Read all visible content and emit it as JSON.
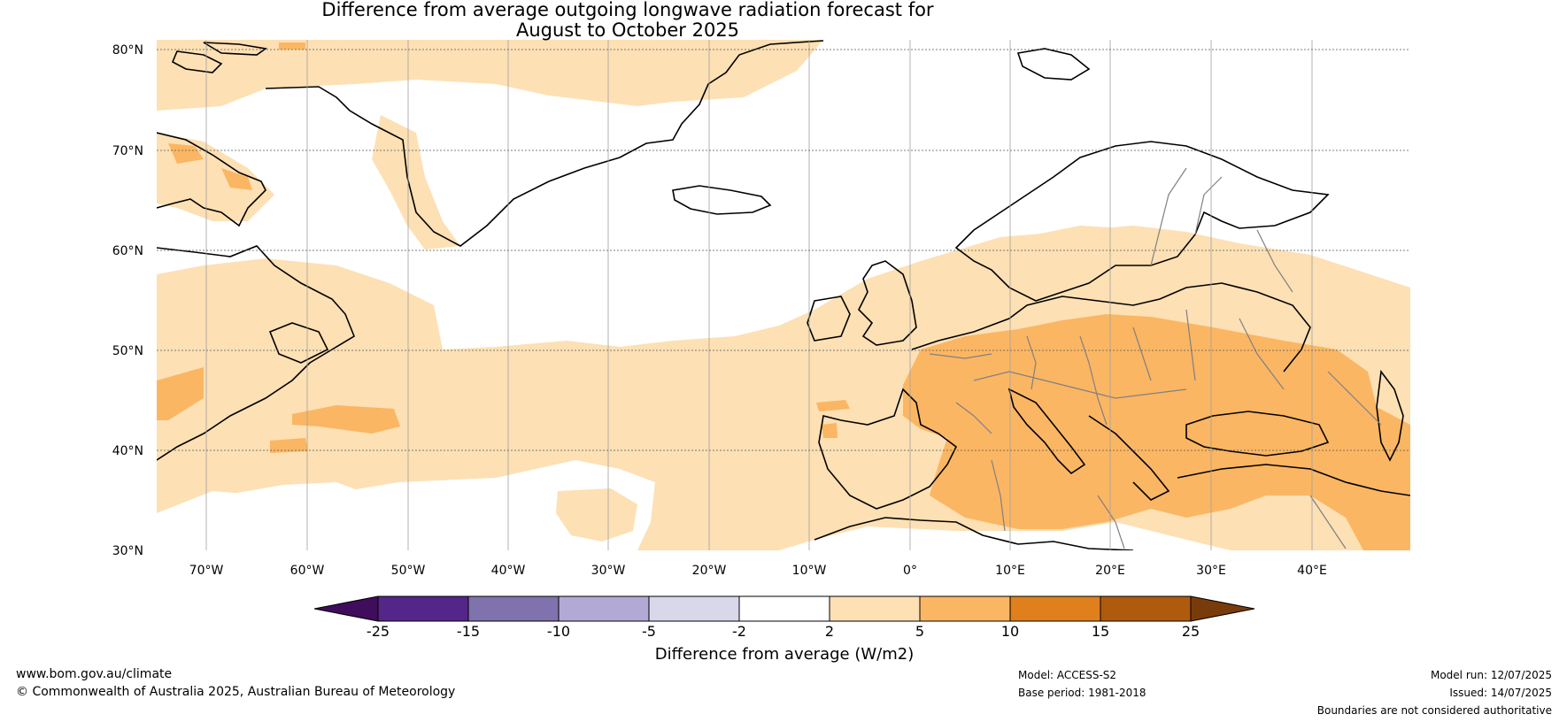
{
  "title": {
    "line1": "Difference from average outgoing longwave radiation forecast for",
    "line2": "August to October 2025"
  },
  "map": {
    "region": "North Atlantic and Europe",
    "lon_range": [
      -75,
      50
    ],
    "lat_range": [
      30,
      81
    ],
    "lat_labels": [
      "80°N",
      "70°N",
      "60°N",
      "50°N",
      "40°N",
      "30°N"
    ],
    "lon_labels": [
      "70°W",
      "60°W",
      "50°W",
      "40°W",
      "30°W",
      "20°W",
      "10°W",
      "0°",
      "10°E",
      "20°E",
      "30°E",
      "40°E"
    ],
    "grid": true,
    "ocean_color": "#ffffff"
  },
  "legend": {
    "label": "Difference from average (W/m2)",
    "ticks": [
      "-25",
      "-15",
      "-10",
      "-5",
      "-2",
      "2",
      "5",
      "10",
      "15",
      "25"
    ],
    "colors": [
      "#3f0d5c",
      "#54268a",
      "#7f72ad",
      "#b2aad4",
      "#d9d8ea",
      "#ffffff",
      "#fde0b4",
      "#fbb663",
      "#df801c",
      "#b05a0e",
      "#7a3b0a"
    ]
  },
  "footer": {
    "website": "www.bom.gov.au/climate",
    "copyright": "© Commonwealth of Australia 2025, Australian Bureau of Meteorology",
    "model": "Model: ACCESS-S2",
    "base_period": "Base period: 1981-2018",
    "model_run": "Model run: 12/07/2025",
    "issued": "Issued: 14/07/2025",
    "disclaimer": "Boundaries are not considered authoritative"
  }
}
